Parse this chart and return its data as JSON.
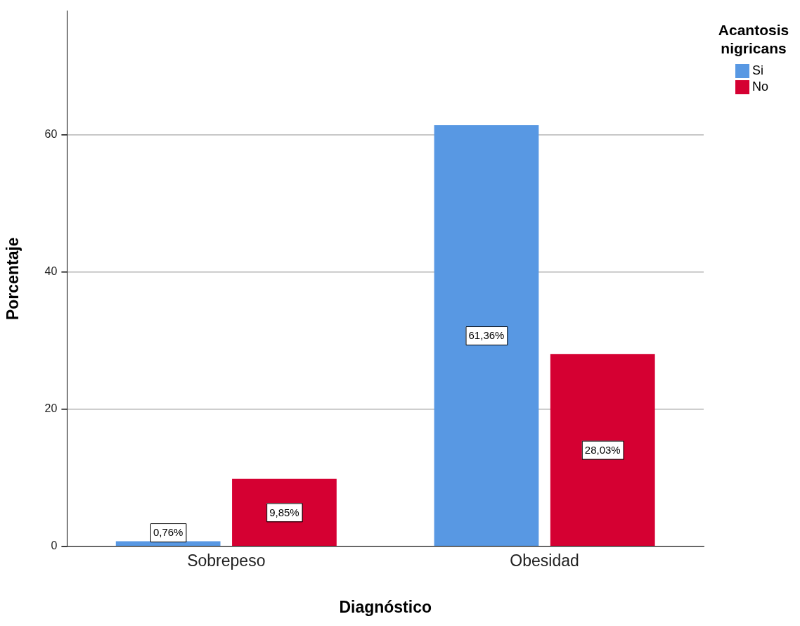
{
  "chart_data": {
    "type": "bar",
    "xlabel": "Diagnóstico",
    "ylabel": "Porcentaje",
    "legend_title": "Acantosis nigricans",
    "categories": [
      "Sobrepeso",
      "Obesidad"
    ],
    "series": [
      {
        "name": "Si",
        "color": "#5898e3",
        "values": [
          0.76,
          61.36
        ],
        "value_labels": [
          "0,76%",
          "61,36%"
        ]
      },
      {
        "name": "No",
        "color": "#d50032",
        "values": [
          9.85,
          28.03
        ],
        "value_labels": [
          "9,85%",
          "28,03%"
        ]
      }
    ],
    "ylim": [
      0,
      78
    ],
    "yticks": [
      0,
      20,
      40,
      60
    ],
    "grid": "y",
    "legend": "top right"
  }
}
